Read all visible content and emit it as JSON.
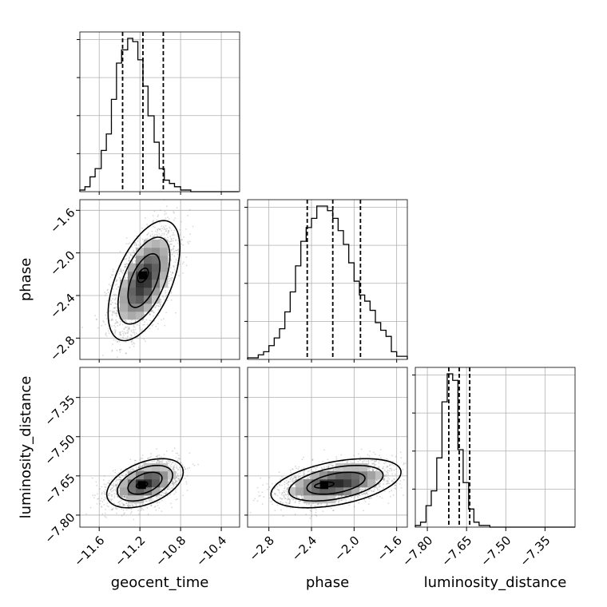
{
  "chart_data": {
    "type": "corner",
    "params": [
      "geocent_time",
      "phase",
      "luminosity_distance"
    ],
    "axes": {
      "geocent_time": {
        "label": "geocent_time",
        "range": [
          -11.79,
          -10.22
        ],
        "ticks": [
          -11.6,
          -11.2,
          -10.8,
          -10.4
        ],
        "tick_labels": [
          "−11.6",
          "−11.2",
          "−10.8",
          "−10.4"
        ]
      },
      "phase": {
        "label": "phase",
        "range": [
          -3.0,
          -1.5
        ],
        "ticks": [
          -2.8,
          -2.4,
          -2.0,
          -1.6
        ],
        "tick_labels": [
          "−2.8",
          "−2.4",
          "−2.0",
          "−1.6"
        ]
      },
      "luminosity_distance": {
        "label": "luminosity_distance",
        "range": [
          -7.846,
          -7.235
        ],
        "ticks": [
          -7.8,
          -7.65,
          -7.5,
          -7.35
        ],
        "tick_labels": [
          "−7.80",
          "−7.65",
          "−7.50",
          "−7.35"
        ]
      }
    },
    "marginals": [
      {
        "param": "geocent_time",
        "bin_edges": [
          -11.79,
          -11.74,
          -11.69,
          -11.64,
          -11.58,
          -11.53,
          -11.48,
          -11.43,
          -11.38,
          -11.32,
          -11.27,
          -11.22,
          -11.17,
          -11.12,
          -11.06,
          -11.01,
          -10.96,
          -10.91,
          -10.86,
          -10.8,
          -10.75,
          -10.7,
          -10.65,
          -10.6,
          -10.54,
          -10.49,
          -10.44,
          -10.39,
          -10.34,
          -10.28,
          -10.23
        ],
        "counts": [
          1,
          3,
          9,
          14,
          25,
          35,
          56,
          78,
          86,
          93,
          91,
          80,
          64,
          46,
          30,
          14,
          7,
          5,
          3,
          1,
          1,
          0,
          0,
          0,
          0,
          0,
          0,
          0,
          0,
          0
        ],
        "quantiles": [
          -11.37,
          -11.17,
          -10.97
        ]
      },
      {
        "param": "phase",
        "bin_edges": [
          -3.0,
          -2.95,
          -2.9,
          -2.85,
          -2.8,
          -2.75,
          -2.7,
          -2.65,
          -2.6,
          -2.55,
          -2.5,
          -2.45,
          -2.4,
          -2.35,
          -2.3,
          -2.25,
          -2.2,
          -2.15,
          -2.1,
          -2.05,
          -2.0,
          -1.95,
          -1.9,
          -1.85,
          -1.8,
          -1.75,
          -1.7,
          -1.65,
          -1.6,
          -1.55,
          -1.5
        ],
        "counts": [
          1,
          1,
          3,
          5,
          9,
          14,
          20,
          31,
          44,
          61,
          77,
          86,
          92,
          100,
          100,
          97,
          92,
          84,
          75,
          63,
          51,
          42,
          38,
          32,
          24,
          19,
          15,
          5,
          2,
          2
        ],
        "quantiles": [
          -2.44,
          -2.2,
          -1.94
        ]
      },
      {
        "param": "luminosity_distance",
        "bin_edges": [
          -7.846,
          -7.826,
          -7.805,
          -7.785,
          -7.764,
          -7.744,
          -7.724,
          -7.703,
          -7.683,
          -7.663,
          -7.642,
          -7.622,
          -7.602,
          -7.581,
          -7.561,
          -7.541,
          -7.52,
          -7.5,
          -7.479,
          -7.459,
          -7.439,
          -7.418,
          -7.398,
          -7.378,
          -7.357,
          -7.337,
          -7.317,
          -7.296,
          -7.276,
          -7.255,
          -7.235
        ],
        "counts": [
          1,
          3,
          13,
          22,
          42,
          76,
          93,
          89,
          47,
          27,
          11,
          3,
          1,
          1,
          0,
          0,
          0,
          0,
          0,
          0,
          0,
          0,
          0,
          0,
          0,
          0,
          0,
          0,
          0,
          0
        ],
        "quantiles": [
          -7.718,
          -7.678,
          -7.638
        ]
      }
    ],
    "joints": [
      {
        "x": "geocent_time",
        "y": "phase",
        "mean": [
          -11.16,
          -2.26
        ],
        "std": [
          0.15,
          0.24
        ],
        "correlation": 0.55,
        "peak": [
          -11.17,
          -2.21
        ]
      },
      {
        "x": "geocent_time",
        "y": "luminosity_distance",
        "mean": [
          -11.15,
          -7.678
        ],
        "std": [
          0.16,
          0.04
        ],
        "correlation": 0.45,
        "peak": [
          -11.18,
          -7.685
        ]
      },
      {
        "x": "phase",
        "y": "luminosity_distance",
        "mean": [
          -2.17,
          -7.678
        ],
        "std": [
          0.26,
          0.04
        ],
        "correlation": 0.45,
        "peak": [
          -2.28,
          -7.685
        ]
      }
    ],
    "grid": true,
    "quantile_lines": "dashed"
  }
}
